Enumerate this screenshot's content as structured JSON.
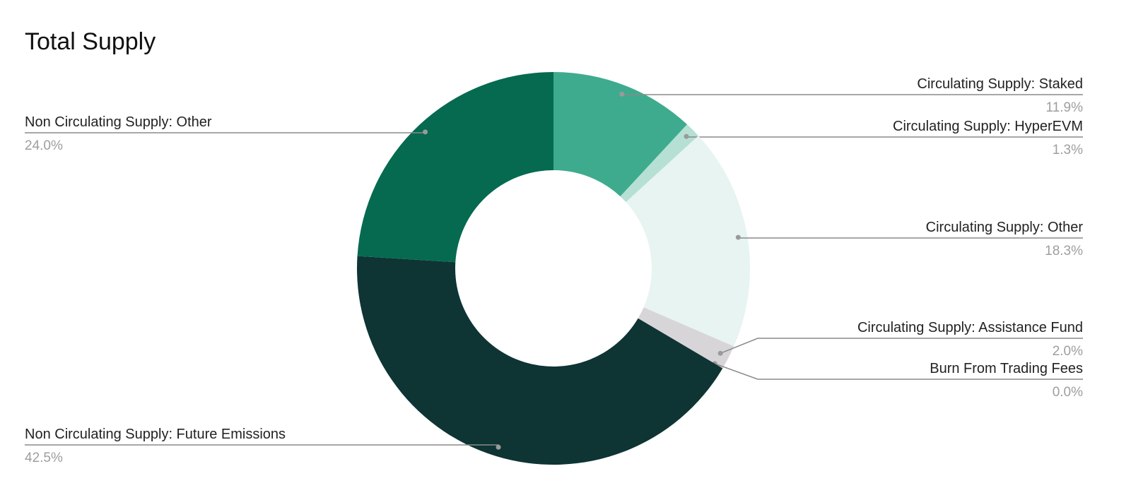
{
  "chart_data": {
    "type": "donut",
    "title": "Total Supply",
    "categories": [
      "Circulating Supply: Staked",
      "Circulating Supply: HyperEVM",
      "Circulating Supply: Other",
      "Circulating Supply: Assistance Fund",
      "Burn From Trading Fees",
      "Non Circulating Supply: Future Emissions",
      "Non Circulating Supply: Other"
    ],
    "values": [
      11.9,
      1.3,
      18.3,
      2.0,
      0.0,
      42.5,
      24.0
    ],
    "value_labels": [
      "11.9%",
      "1.3%",
      "18.3%",
      "2.0%",
      "0.0%",
      "42.5%",
      "24.0%"
    ],
    "colors": [
      "#3eab8f",
      "#b5e0d3",
      "#e7f4f1",
      "#d8d5d8",
      "#b8b2b8",
      "#0e3434",
      "#056a50"
    ]
  }
}
